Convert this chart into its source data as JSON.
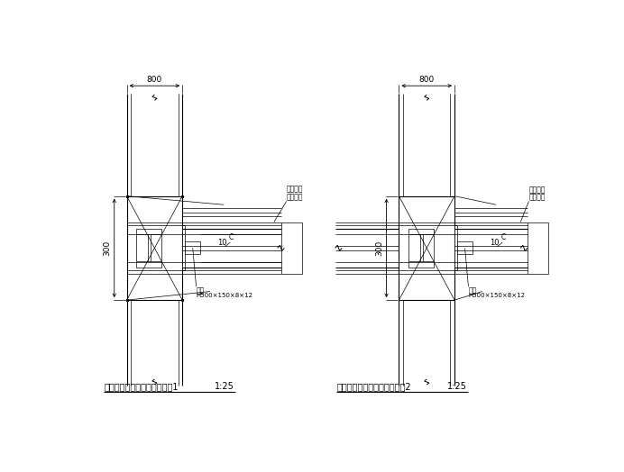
{
  "bg_color": "#ffffff",
  "line_color": "#000000",
  "title1": "型钢柱与梁连接节点配筋构造1",
  "title2": "型钢柱与梁连接节点配筋构造2",
  "scale": "1:25",
  "dim_800_left": "800",
  "dim_800_right": "800",
  "dim_300_left": "300",
  "dim_300_right": "300",
  "dim_10": "10",
  "label_beam": "钢梁",
  "label_beam_size": "H500×150×8×12",
  "label_rebar1": "受拉纵筋",
  "label_stirrup": "箍筋构造"
}
